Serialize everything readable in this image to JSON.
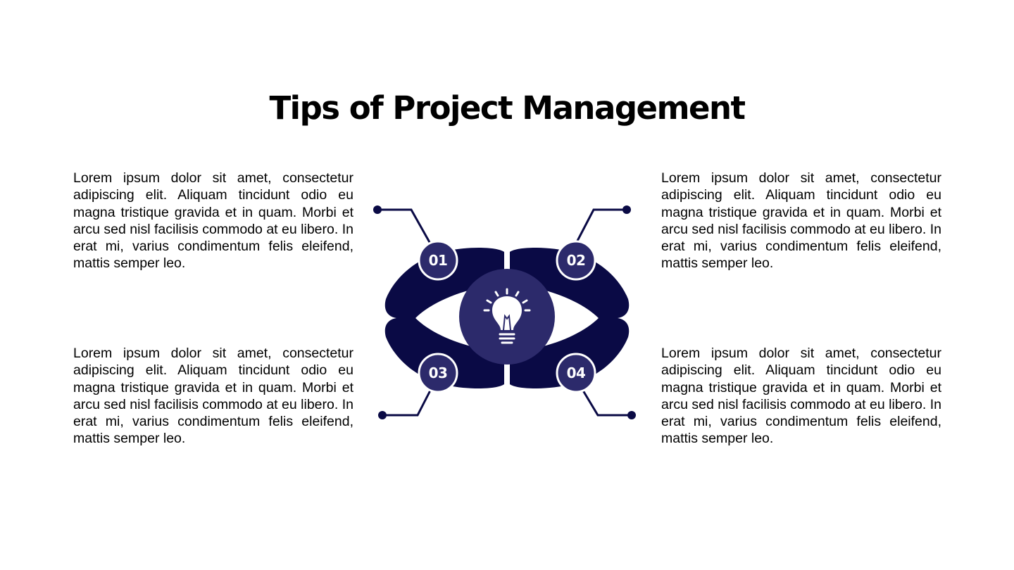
{
  "title": "Tips of Project Management",
  "colors": {
    "navy": "#0a0a45",
    "purple": "#2c2a6b",
    "background": "#ffffff"
  },
  "tips": [
    {
      "number": "01",
      "text": "Lorem ipsum dolor sit amet, consectetur adipiscing elit. Aliquam tincidunt odio eu magna tristique gravida et in quam. Morbi et arcu sed nisl facilisis commodo at eu libero. In erat mi, varius condimentum felis eleifend, mattis semper leo."
    },
    {
      "number": "02",
      "text": "Lorem ipsum dolor sit amet, consectetur adipiscing elit. Aliquam tincidunt odio eu magna tristique gravida et in quam. Morbi et arcu sed nisl facilisis commodo at eu libero. In erat mi, varius condimentum felis eleifend, mattis semper leo."
    },
    {
      "number": "03",
      "text": "Lorem ipsum dolor sit amet, consectetur adipiscing elit. Aliquam tincidunt odio eu magna tristique gravida et in quam. Morbi et arcu sed nisl facilisis commodo at eu libero. In erat mi, varius condimentum felis eleifend, mattis semper leo."
    },
    {
      "number": "04",
      "text": "Lorem ipsum dolor sit amet, consectetur adipiscing elit. Aliquam tincidunt odio eu magna tristique gravida et in quam. Morbi et arcu sed nisl facilisis commodo at eu libero. In erat mi, varius condimentum felis eleifend, mattis semper leo."
    }
  ],
  "center_icon": "lightbulb-icon"
}
